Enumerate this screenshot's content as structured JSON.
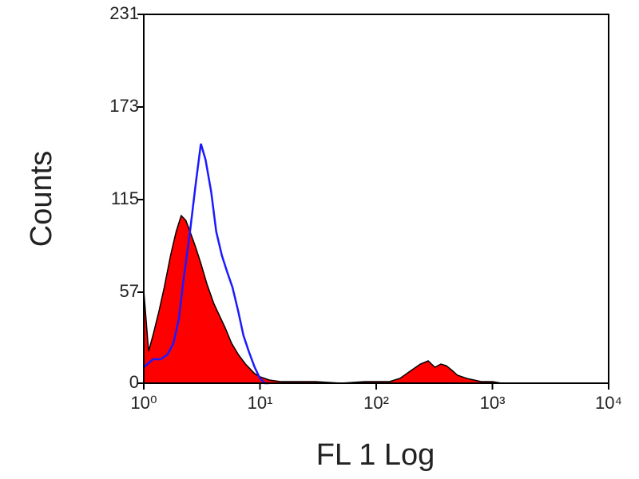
{
  "chart_data": {
    "type": "histogram-overlay",
    "xlabel": "FL 1 Log",
    "ylabel": "Counts",
    "xscale": "log",
    "xlim": [
      1,
      10000
    ],
    "ylim": [
      0,
      231
    ],
    "xticks": [
      {
        "value": 1,
        "label": "10⁰"
      },
      {
        "value": 10,
        "label": "10¹"
      },
      {
        "value": 100,
        "label": "10²"
      },
      {
        "value": 1000,
        "label": "10³"
      },
      {
        "value": 10000,
        "label": "10⁴"
      }
    ],
    "yticks": [
      0,
      57,
      115,
      173,
      231
    ],
    "series": [
      {
        "style": "area",
        "color": "#ff0000",
        "edge_color": "#000000",
        "x": [
          1,
          1.1,
          1.2,
          1.35,
          1.5,
          1.7,
          1.9,
          2.1,
          2.3,
          2.5,
          2.8,
          3.1,
          3.5,
          4,
          4.5,
          5,
          5.7,
          6.5,
          7.5,
          9,
          10,
          12,
          15,
          20,
          30,
          50,
          80,
          100,
          130,
          160,
          200,
          240,
          280,
          320,
          360,
          400,
          450,
          500,
          600,
          800,
          1000,
          1200
        ],
        "values": [
          58,
          20,
          30,
          45,
          60,
          80,
          95,
          105,
          102,
          95,
          85,
          75,
          62,
          50,
          42,
          35,
          25,
          18,
          12,
          6,
          4,
          2,
          1,
          1,
          1,
          0,
          1,
          1,
          1,
          3,
          8,
          12,
          14,
          10,
          12,
          11,
          8,
          5,
          3,
          1,
          1,
          0
        ]
      },
      {
        "style": "line",
        "color": "#1a1aff",
        "x": [
          1,
          1.2,
          1.4,
          1.6,
          1.8,
          2,
          2.2,
          2.5,
          2.8,
          3.1,
          3.4,
          3.8,
          4.2,
          4.7,
          5.2,
          5.8,
          6.5,
          7.2,
          8,
          9,
          10,
          11,
          12
        ],
        "values": [
          10,
          15,
          15,
          18,
          25,
          40,
          65,
          95,
          125,
          150,
          140,
          120,
          95,
          80,
          70,
          60,
          45,
          30,
          20,
          10,
          3,
          0,
          0
        ]
      }
    ]
  }
}
